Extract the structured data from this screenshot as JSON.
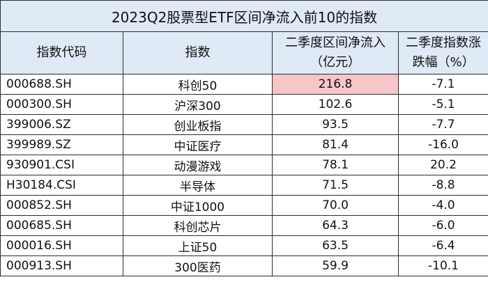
{
  "chart_data": {
    "type": "table",
    "title": "2023Q2股票型ETF区间净流入前10的指数",
    "columns": [
      {
        "line1": "指数代码",
        "line2": ""
      },
      {
        "line1": "指数",
        "line2": ""
      },
      {
        "line1": "二季度区间净流入",
        "line2": "（亿元）"
      },
      {
        "line1": "二季度指数涨",
        "line2": "跌幅（%）"
      }
    ],
    "rows": [
      {
        "code": "000688.SH",
        "index": "科创50",
        "net_inflow": "216.8",
        "change": "-7.1"
      },
      {
        "code": "000300.SH",
        "index": "沪深300",
        "net_inflow": "102.6",
        "change": "-5.1"
      },
      {
        "code": "399006.SZ",
        "index": "创业板指",
        "net_inflow": "93.5",
        "change": "-7.7"
      },
      {
        "code": "399989.SZ",
        "index": "中证医疗",
        "net_inflow": "81.4",
        "change": "-16.0"
      },
      {
        "code": "930901.CSI",
        "index": "动漫游戏",
        "net_inflow": "78.1",
        "change": "20.2"
      },
      {
        "code": "H30184.CSI",
        "index": "半导体",
        "net_inflow": "71.5",
        "change": "-8.8"
      },
      {
        "code": "000852.SH",
        "index": "中证1000",
        "net_inflow": "70.0",
        "change": "-4.0"
      },
      {
        "code": "000685.SH",
        "index": "科创芯片",
        "net_inflow": "64.3",
        "change": "-6.0"
      },
      {
        "code": "000016.SH",
        "index": "上证50",
        "net_inflow": "63.5",
        "change": "-6.4"
      },
      {
        "code": "000913.SH",
        "index": "300医药",
        "net_inflow": "59.9",
        "change": "-10.1"
      }
    ],
    "highlight_color": "#f6c6c9",
    "header_background": "#dfeaf6"
  }
}
